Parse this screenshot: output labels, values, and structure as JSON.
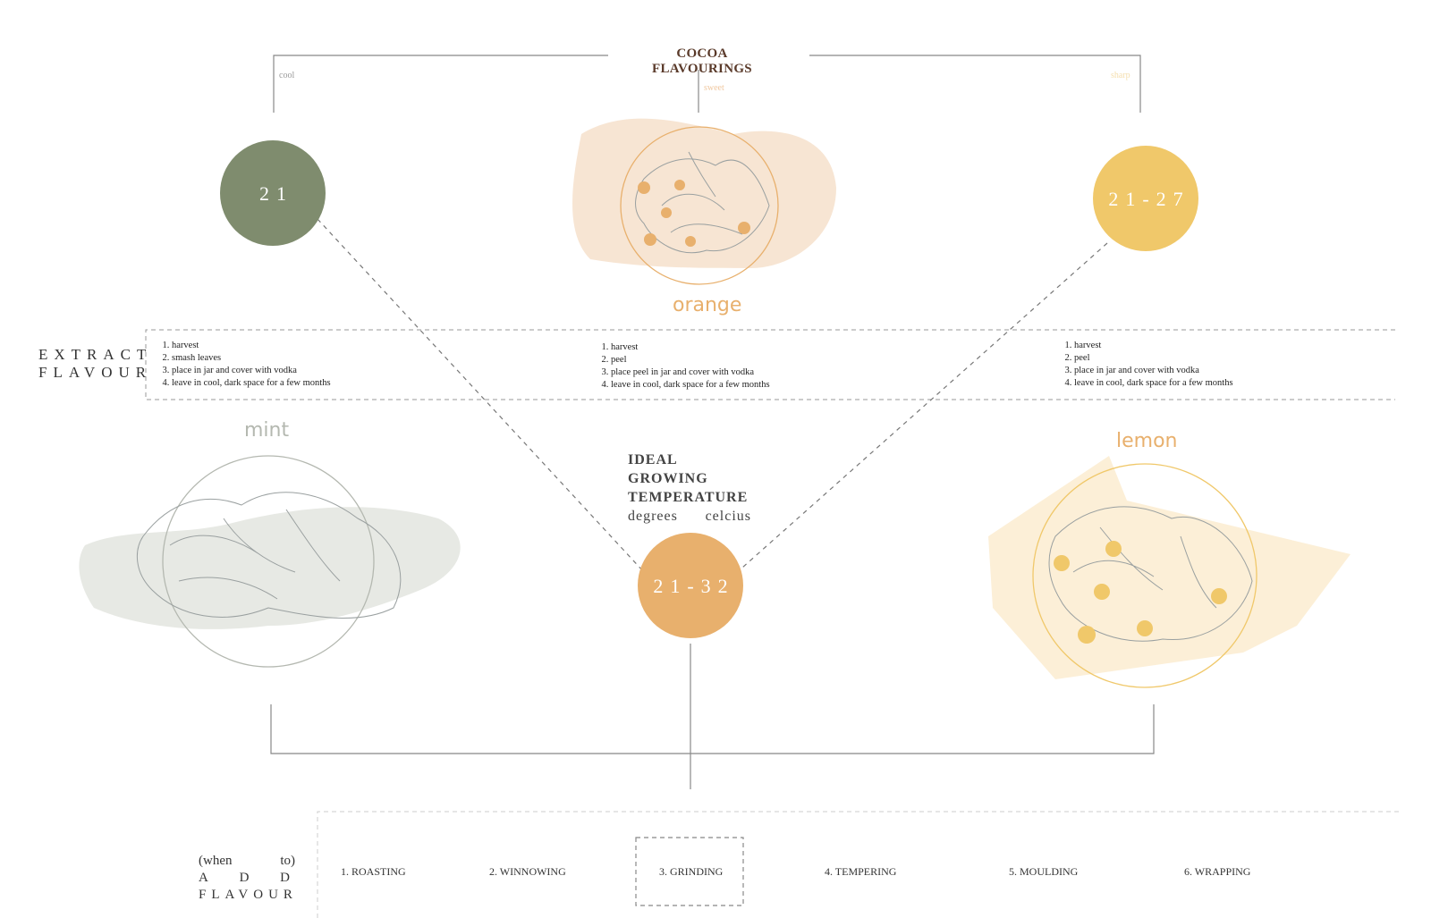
{
  "header": {
    "title": "COCOA FLAVOURINGS"
  },
  "tags": {
    "cool": "cool",
    "sweet": "sweet",
    "sharp": "sharp"
  },
  "colors": {
    "mint": "#7f8c6e",
    "orange": "#e8b06d",
    "lemon": "#f0c86a",
    "mint_blob": "#e7e9e4",
    "orange_blob": "#f6e1cb",
    "lemon_blob": "#fbecd0",
    "line": "#777777"
  },
  "flavours": {
    "mint": {
      "name": "mint",
      "temp": "21",
      "steps": [
        "harvest",
        "smash leaves",
        "place in jar and cover with vodka",
        "leave in cool, dark space for a few months"
      ]
    },
    "orange": {
      "name": "orange",
      "temp": "21-32",
      "steps": [
        "harvest",
        "peel",
        "place peel in jar and cover with vodka",
        "leave in cool, dark space for a few months"
      ]
    },
    "lemon": {
      "name": "lemon",
      "temp": "21-27",
      "steps": [
        "harvest",
        "peel",
        "place in jar and cover with vodka",
        "leave in cool, dark space for a few months"
      ]
    }
  },
  "extract": {
    "line1": "EXTRACT",
    "line2": "FLAVOUR"
  },
  "ideal": {
    "line1": "IDEAL GROWING",
    "line2": "TEMPERATURE",
    "sub1": "degrees",
    "sub2": "celcius"
  },
  "add_flavour": {
    "w1": "(when",
    "w2": "to)",
    "a1": "A",
    "a2": "D",
    "a3": "D",
    "line3": "FLAVOUR"
  },
  "process": {
    "stages": [
      "1. ROASTING",
      "2. WINNOWING",
      "3. GRINDING",
      "4. TEMPERING",
      "5. MOULDING",
      "6. WRAPPING"
    ],
    "selected": "3. GRINDING"
  }
}
